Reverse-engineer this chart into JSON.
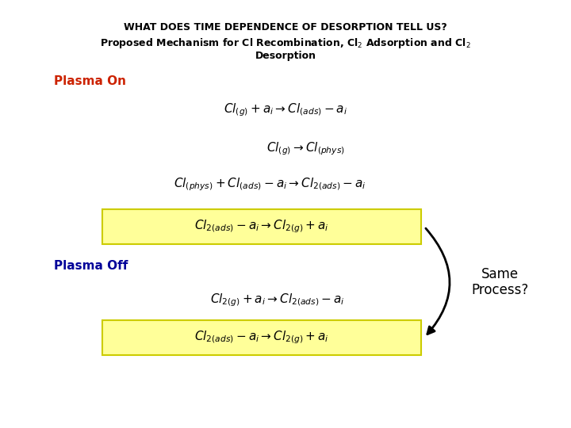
{
  "title_line1": "WHAT DOES TIME DEPENDENCE OF DESORPTION TELL US?",
  "title_line2": "Proposed Mechanism for Cl Recombination, Cl$_2$ Adsorption and Cl$_2$",
  "title_line3": "Desorption",
  "plasma_on_label": "Plasma On",
  "plasma_off_label": "Plasma Off",
  "same_process_label": "Same\nProcess?",
  "bg_color": "#ffffff",
  "title_color": "#000000",
  "plasma_on_color": "#cc2200",
  "plasma_off_color": "#000099",
  "box_bg_color": "#ffff99",
  "box_edge_color": "#cccc00",
  "arrow_color": "#000000",
  "same_process_color": "#000000",
  "title_fontsize": 9,
  "label_fontsize": 11,
  "eq_fontsize": 11
}
